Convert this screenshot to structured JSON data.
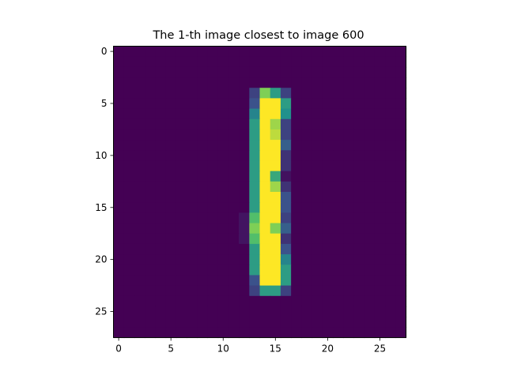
{
  "chart_data": {
    "type": "heatmap",
    "title": "The 1-th image closest to image 600",
    "xlabel": "",
    "ylabel": "",
    "grid": false,
    "colormap": "viridis",
    "size": {
      "rows": 28,
      "cols": 28
    },
    "xlim": [
      -0.5,
      27.5
    ],
    "ylim": [
      27.5,
      -0.5
    ],
    "x_ticks": [
      0,
      5,
      10,
      15,
      20,
      25
    ],
    "y_ticks": [
      0,
      5,
      10,
      15,
      20,
      25
    ],
    "x_tick_labels": [
      "0",
      "5",
      "10",
      "15",
      "20",
      "25"
    ],
    "y_tick_labels": [
      "0",
      "5",
      "10",
      "15",
      "20",
      "25"
    ],
    "value_range": [
      0,
      1
    ],
    "background_value": 0,
    "nonzero_cells": [
      {
        "row": 4,
        "col": 13,
        "value": 0.2
      },
      {
        "row": 4,
        "col": 14,
        "value": 0.8
      },
      {
        "row": 4,
        "col": 15,
        "value": 0.55
      },
      {
        "row": 4,
        "col": 16,
        "value": 0.2
      },
      {
        "row": 5,
        "col": 13,
        "value": 0.25
      },
      {
        "row": 5,
        "col": 14,
        "value": 1.0
      },
      {
        "row": 5,
        "col": 15,
        "value": 1.0
      },
      {
        "row": 5,
        "col": 16,
        "value": 0.55
      },
      {
        "row": 6,
        "col": 13,
        "value": 0.45
      },
      {
        "row": 6,
        "col": 14,
        "value": 1.0
      },
      {
        "row": 6,
        "col": 15,
        "value": 1.0
      },
      {
        "row": 6,
        "col": 16,
        "value": 0.5
      },
      {
        "row": 7,
        "col": 13,
        "value": 0.55
      },
      {
        "row": 7,
        "col": 14,
        "value": 1.0
      },
      {
        "row": 7,
        "col": 15,
        "value": 0.85
      },
      {
        "row": 7,
        "col": 16,
        "value": 0.2
      },
      {
        "row": 8,
        "col": 13,
        "value": 0.55
      },
      {
        "row": 8,
        "col": 14,
        "value": 1.0
      },
      {
        "row": 8,
        "col": 15,
        "value": 0.9
      },
      {
        "row": 8,
        "col": 16,
        "value": 0.2
      },
      {
        "row": 9,
        "col": 13,
        "value": 0.55
      },
      {
        "row": 9,
        "col": 14,
        "value": 1.0
      },
      {
        "row": 9,
        "col": 15,
        "value": 1.0
      },
      {
        "row": 9,
        "col": 16,
        "value": 0.3
      },
      {
        "row": 10,
        "col": 13,
        "value": 0.55
      },
      {
        "row": 10,
        "col": 14,
        "value": 1.0
      },
      {
        "row": 10,
        "col": 15,
        "value": 1.0
      },
      {
        "row": 10,
        "col": 16,
        "value": 0.15
      },
      {
        "row": 11,
        "col": 13,
        "value": 0.55
      },
      {
        "row": 11,
        "col": 14,
        "value": 1.0
      },
      {
        "row": 11,
        "col": 15,
        "value": 1.0
      },
      {
        "row": 11,
        "col": 16,
        "value": 0.15
      },
      {
        "row": 12,
        "col": 13,
        "value": 0.55
      },
      {
        "row": 12,
        "col": 14,
        "value": 1.0
      },
      {
        "row": 12,
        "col": 15,
        "value": 0.6
      },
      {
        "row": 12,
        "col": 16,
        "value": 0.05
      },
      {
        "row": 13,
        "col": 13,
        "value": 0.55
      },
      {
        "row": 13,
        "col": 14,
        "value": 1.0
      },
      {
        "row": 13,
        "col": 15,
        "value": 0.85
      },
      {
        "row": 13,
        "col": 16,
        "value": 0.15
      },
      {
        "row": 14,
        "col": 13,
        "value": 0.55
      },
      {
        "row": 14,
        "col": 14,
        "value": 1.0
      },
      {
        "row": 14,
        "col": 15,
        "value": 1.0
      },
      {
        "row": 14,
        "col": 16,
        "value": 0.25
      },
      {
        "row": 15,
        "col": 13,
        "value": 0.55
      },
      {
        "row": 15,
        "col": 14,
        "value": 1.0
      },
      {
        "row": 15,
        "col": 15,
        "value": 1.0
      },
      {
        "row": 15,
        "col": 16,
        "value": 0.25
      },
      {
        "row": 16,
        "col": 12,
        "value": 0.06
      },
      {
        "row": 16,
        "col": 13,
        "value": 0.7
      },
      {
        "row": 16,
        "col": 14,
        "value": 1.0
      },
      {
        "row": 16,
        "col": 15,
        "value": 1.0
      },
      {
        "row": 16,
        "col": 16,
        "value": 0.2
      },
      {
        "row": 17,
        "col": 12,
        "value": 0.06
      },
      {
        "row": 17,
        "col": 13,
        "value": 0.8
      },
      {
        "row": 17,
        "col": 14,
        "value": 1.0
      },
      {
        "row": 17,
        "col": 15,
        "value": 0.8
      },
      {
        "row": 17,
        "col": 16,
        "value": 0.3
      },
      {
        "row": 18,
        "col": 12,
        "value": 0.06
      },
      {
        "row": 18,
        "col": 13,
        "value": 0.7
      },
      {
        "row": 18,
        "col": 14,
        "value": 1.0
      },
      {
        "row": 18,
        "col": 15,
        "value": 1.0
      },
      {
        "row": 18,
        "col": 16,
        "value": 0.15
      },
      {
        "row": 19,
        "col": 13,
        "value": 0.55
      },
      {
        "row": 19,
        "col": 14,
        "value": 1.0
      },
      {
        "row": 19,
        "col": 15,
        "value": 1.0
      },
      {
        "row": 19,
        "col": 16,
        "value": 0.25
      },
      {
        "row": 20,
        "col": 13,
        "value": 0.55
      },
      {
        "row": 20,
        "col": 14,
        "value": 1.0
      },
      {
        "row": 20,
        "col": 15,
        "value": 1.0
      },
      {
        "row": 20,
        "col": 16,
        "value": 0.45
      },
      {
        "row": 21,
        "col": 13,
        "value": 0.55
      },
      {
        "row": 21,
        "col": 14,
        "value": 1.0
      },
      {
        "row": 21,
        "col": 15,
        "value": 1.0
      },
      {
        "row": 21,
        "col": 16,
        "value": 0.55
      },
      {
        "row": 22,
        "col": 13,
        "value": 0.25
      },
      {
        "row": 22,
        "col": 14,
        "value": 1.0
      },
      {
        "row": 22,
        "col": 15,
        "value": 1.0
      },
      {
        "row": 22,
        "col": 16,
        "value": 0.55
      },
      {
        "row": 23,
        "col": 13,
        "value": 0.2
      },
      {
        "row": 23,
        "col": 14,
        "value": 0.55
      },
      {
        "row": 23,
        "col": 15,
        "value": 0.55
      },
      {
        "row": 23,
        "col": 16,
        "value": 0.2
      }
    ]
  }
}
